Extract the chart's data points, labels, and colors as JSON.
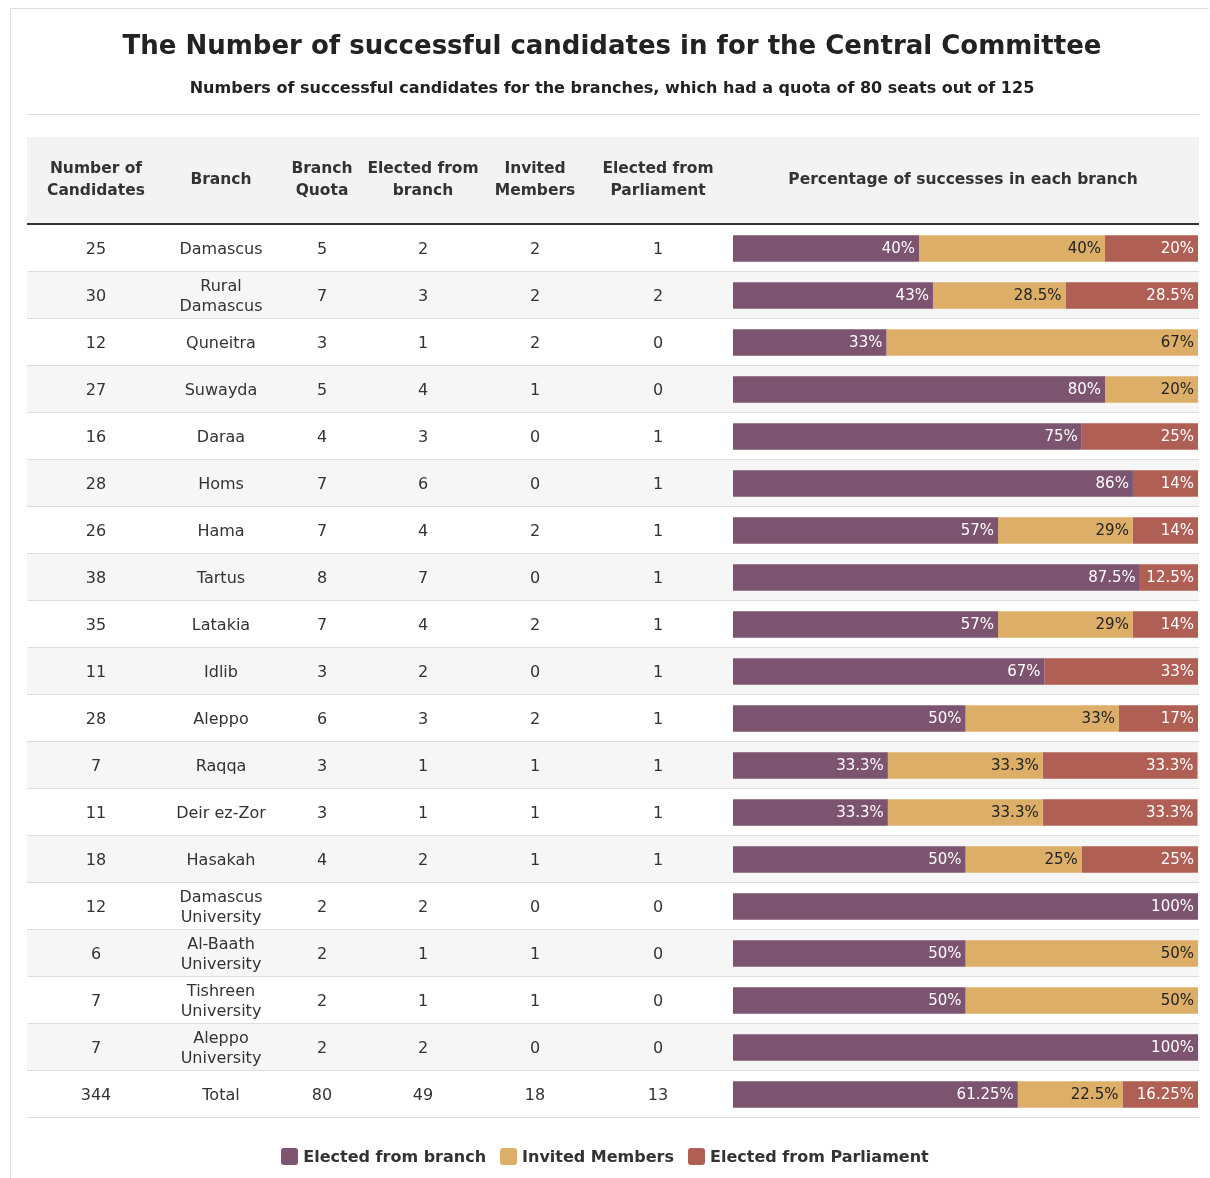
{
  "chart_data": [
    {
      "type": "other",
      "title": "The Number of successful candidates in for the Central Committee",
      "subtitle": "Numbers of successful candidates for the branches, which had a quota of 80 seats out of 125",
      "xlabel": "Number of Candidates",
      "annotations": [
        "25",
        "30",
        "12",
        "27",
        "16",
        "28",
        "26",
        "38",
        "35",
        "11",
        "28",
        "7",
        "11",
        "18",
        "12",
        "6",
        "7",
        "7",
        "344"
      ]
    },
    {
      "type": "heatmap",
      "data_labels": true,
      "ylabel": "Branch",
      "categories": [
        "Branch Quota",
        "Elected from branch",
        "Invited Members",
        "Elected from Parliament"
      ],
      "y_categories": [
        "Damascus",
        "Rural Damascus",
        "Quneitra",
        "Suwayda",
        "Daraa",
        "Homs",
        "Hama",
        "Tartus",
        "Latakia",
        "Idlib",
        "Aleppo",
        "Raqqa",
        "Deir ez-Zor",
        "Hasakah",
        "Damascus University",
        "Al-Baath University",
        "Tishreen University",
        "Aleppo University",
        "Total"
      ],
      "cells": [
        [
          5,
          2,
          2,
          1
        ],
        [
          7,
          3,
          2,
          2
        ],
        [
          3,
          1,
          2,
          0
        ],
        [
          5,
          4,
          1,
          0
        ],
        [
          4,
          3,
          0,
          1
        ],
        [
          7,
          6,
          0,
          1
        ],
        [
          7,
          4,
          2,
          1
        ],
        [
          8,
          7,
          0,
          1
        ],
        [
          7,
          4,
          2,
          1
        ],
        [
          3,
          2,
          0,
          1
        ],
        [
          6,
          3,
          2,
          1
        ],
        [
          3,
          1,
          1,
          1
        ],
        [
          3,
          1,
          1,
          1
        ],
        [
          4,
          2,
          1,
          1
        ],
        [
          2,
          2,
          0,
          0
        ],
        [
          2,
          1,
          1,
          0
        ],
        [
          2,
          1,
          1,
          0
        ],
        [
          2,
          2,
          0,
          0
        ],
        [
          80,
          49,
          18,
          13
        ]
      ]
    },
    {
      "type": "bar",
      "title": "Percentage of successes in each branch",
      "orientation": "horizontal",
      "stacked": true,
      "xlim": [
        0,
        100
      ],
      "tick_labels": false,
      "legend": "bottom",
      "categories": [
        null,
        null,
        null,
        null,
        null,
        null,
        null,
        null,
        null,
        null,
        null,
        null,
        null,
        null,
        null,
        null,
        null,
        null,
        null
      ],
      "series": [
        {
          "name": "Elected from branch",
          "color": "#7d5470",
          "values": [
            40,
            43,
            33,
            80,
            75,
            86,
            57,
            87.5,
            57,
            67,
            50,
            33.3,
            33.3,
            50,
            100,
            50,
            50,
            100,
            61.25
          ],
          "value_labels": [
            "40%",
            "43%",
            "33%",
            "80%",
            "75%",
            "86%",
            "57%",
            "87.5%",
            "57%",
            "67%",
            "50%",
            "33.3%",
            "33.3%",
            "50%",
            "100%",
            "50%",
            "50%",
            "100%",
            "61.25%"
          ]
        },
        {
          "name": "Invited Members",
          "color": "#dcae68",
          "values": [
            40,
            28.5,
            67,
            20,
            null,
            null,
            29,
            null,
            29,
            null,
            33,
            33.3,
            33.3,
            25,
            null,
            50,
            50,
            null,
            22.5
          ],
          "value_labels": [
            "40%",
            "28.5%",
            "67%",
            "20%",
            null,
            null,
            "29%",
            null,
            "29%",
            null,
            "33%",
            "33.3%",
            "33.3%",
            "25%",
            null,
            "50%",
            "50%",
            null,
            "22.5%"
          ]
        },
        {
          "name": "Elected from Parliament",
          "color": "#b05f55",
          "values": [
            20,
            28.5,
            null,
            null,
            25,
            14,
            14,
            12.5,
            14,
            33,
            17,
            33.3,
            33.3,
            25,
            null,
            null,
            null,
            null,
            16.25
          ],
          "value_labels": [
            "20%",
            "28.5%",
            null,
            null,
            "25%",
            "14%",
            "14%",
            "12.5%",
            "14%",
            "33%",
            "17%",
            "33.3%",
            "33.3%",
            "25%",
            null,
            null,
            null,
            null,
            "16.25%"
          ]
        }
      ]
    }
  ]
}
